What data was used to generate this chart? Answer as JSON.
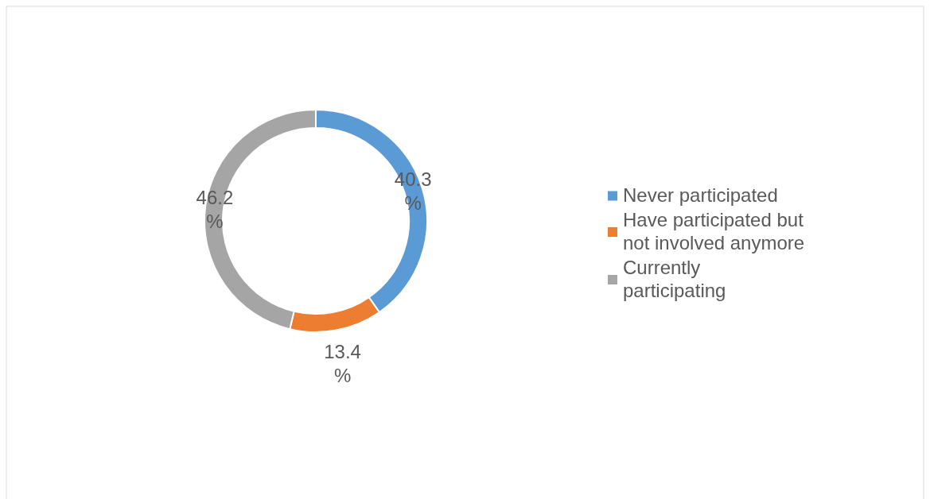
{
  "chart_data": {
    "type": "donut",
    "categories": [
      "Never participated",
      "Have participated but not involved anymore",
      "Currently participating"
    ],
    "values": [
      40.3,
      13.4,
      46.2
    ],
    "colors": [
      "#5b9bd5",
      "#ed7d31",
      "#a5a5a5"
    ],
    "value_labels": [
      "40.3 %",
      "13.4 %",
      "46.2 %"
    ],
    "legend": "right"
  }
}
